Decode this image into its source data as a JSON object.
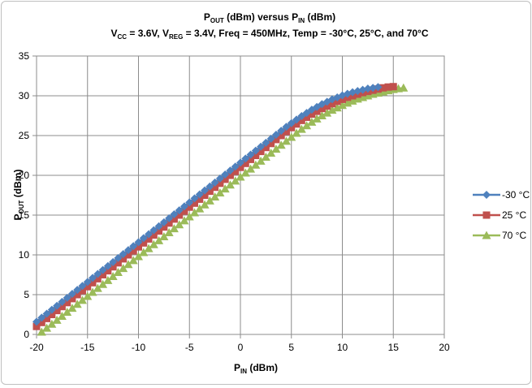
{
  "chart_data": {
    "type": "line",
    "title_line1": {
      "a": "P",
      "a_sub": "OUT",
      "b": " (dBm) versus P",
      "b_sub": "IN",
      "c": " (dBm)"
    },
    "title_line2": {
      "a": "V",
      "a_sub": "CC",
      "b": " = 3.6V, V",
      "b_sub": "REG",
      "c": " = 3.4V, Freq = 450MHz, Temp = -30°C, 25°C, and 70°C"
    },
    "xlabel": {
      "main": "P",
      "sub": "IN",
      "rest": " (dBm)"
    },
    "ylabel": {
      "main": "P",
      "sub": "OUT",
      "rest": " (dBm)"
    },
    "xlim": [
      -20,
      20
    ],
    "ylim": [
      0,
      35
    ],
    "x_ticks": [
      -20,
      -15,
      -10,
      -5,
      0,
      5,
      10,
      15,
      20
    ],
    "y_ticks": [
      0,
      5,
      10,
      15,
      20,
      25,
      30,
      35
    ],
    "grid": true,
    "legend_position": "right",
    "series": [
      {
        "name": "-30 °C",
        "color": "#4f81bd",
        "marker": "diamond",
        "points": [
          [
            -20,
            1.6
          ],
          [
            -19.5,
            2.1
          ],
          [
            -19,
            2.6
          ],
          [
            -18.5,
            3.1
          ],
          [
            -18,
            3.6
          ],
          [
            -17.5,
            4.1
          ],
          [
            -17,
            4.6
          ],
          [
            -16.5,
            5.1
          ],
          [
            -16,
            5.6
          ],
          [
            -15.5,
            6.1
          ],
          [
            -15,
            6.6
          ],
          [
            -14.5,
            7.1
          ],
          [
            -14,
            7.6
          ],
          [
            -13.5,
            8.1
          ],
          [
            -13,
            8.6
          ],
          [
            -12.5,
            9.1
          ],
          [
            -12,
            9.6
          ],
          [
            -11.5,
            10.1
          ],
          [
            -11,
            10.6
          ],
          [
            -10.5,
            11.1
          ],
          [
            -10,
            11.6
          ],
          [
            -9.5,
            12.1
          ],
          [
            -9,
            12.6
          ],
          [
            -8.5,
            13.1
          ],
          [
            -8,
            13.6
          ],
          [
            -7.5,
            14.1
          ],
          [
            -7,
            14.6
          ],
          [
            -6.5,
            15.1
          ],
          [
            -6,
            15.6
          ],
          [
            -5.5,
            16.1
          ],
          [
            -5,
            16.6
          ],
          [
            -4.5,
            17.1
          ],
          [
            -4,
            17.6
          ],
          [
            -3.5,
            18.1
          ],
          [
            -3,
            18.6
          ],
          [
            -2.5,
            19.1
          ],
          [
            -2,
            19.6
          ],
          [
            -1.5,
            20.1
          ],
          [
            -1,
            20.6
          ],
          [
            -0.5,
            21.1
          ],
          [
            0,
            21.6
          ],
          [
            0.5,
            22.1
          ],
          [
            1,
            22.6
          ],
          [
            1.5,
            23.1
          ],
          [
            2,
            23.6
          ],
          [
            2.5,
            24.1
          ],
          [
            3,
            24.6
          ],
          [
            3.5,
            25.1
          ],
          [
            4,
            25.6
          ],
          [
            4.5,
            26.1
          ],
          [
            5,
            26.55
          ],
          [
            5.5,
            27.0
          ],
          [
            6,
            27.45
          ],
          [
            6.5,
            27.85
          ],
          [
            7,
            28.25
          ],
          [
            7.5,
            28.6
          ],
          [
            8,
            28.95
          ],
          [
            8.5,
            29.25
          ],
          [
            9,
            29.55
          ],
          [
            9.5,
            29.8
          ],
          [
            10,
            30.05
          ],
          [
            10.5,
            30.25
          ],
          [
            11,
            30.45
          ],
          [
            11.5,
            30.6
          ],
          [
            12,
            30.75
          ],
          [
            12.5,
            30.9
          ],
          [
            13,
            31.0
          ],
          [
            13.5,
            31.1
          ]
        ]
      },
      {
        "name": "25 °C",
        "color": "#c0504d",
        "marker": "square",
        "points": [
          [
            -20,
            1.0
          ],
          [
            -19.5,
            1.5
          ],
          [
            -19,
            2.0
          ],
          [
            -18.5,
            2.5
          ],
          [
            -18,
            3.0
          ],
          [
            -17.5,
            3.5
          ],
          [
            -17,
            4.0
          ],
          [
            -16.5,
            4.5
          ],
          [
            -16,
            5.0
          ],
          [
            -15.5,
            5.5
          ],
          [
            -15,
            6.0
          ],
          [
            -14.5,
            6.5
          ],
          [
            -14,
            7.0
          ],
          [
            -13.5,
            7.5
          ],
          [
            -13,
            8.0
          ],
          [
            -12.5,
            8.5
          ],
          [
            -12,
            9.0
          ],
          [
            -11.5,
            9.5
          ],
          [
            -11,
            10.0
          ],
          [
            -10.5,
            10.5
          ],
          [
            -10,
            11.0
          ],
          [
            -9.5,
            11.5
          ],
          [
            -9,
            12.0
          ],
          [
            -8.5,
            12.5
          ],
          [
            -8,
            13.0
          ],
          [
            -7.5,
            13.5
          ],
          [
            -7,
            14.0
          ],
          [
            -6.5,
            14.5
          ],
          [
            -6,
            15.0
          ],
          [
            -5.5,
            15.5
          ],
          [
            -5,
            16.0
          ],
          [
            -4.5,
            16.5
          ],
          [
            -4,
            17.0
          ],
          [
            -3.5,
            17.5
          ],
          [
            -3,
            18.0
          ],
          [
            -2.5,
            18.5
          ],
          [
            -2,
            19.0
          ],
          [
            -1.5,
            19.5
          ],
          [
            -1,
            20.0
          ],
          [
            -0.5,
            20.5
          ],
          [
            0,
            21.0
          ],
          [
            0.5,
            21.5
          ],
          [
            1,
            22.0
          ],
          [
            1.5,
            22.5
          ],
          [
            2,
            23.0
          ],
          [
            2.5,
            23.5
          ],
          [
            3,
            24.0
          ],
          [
            3.5,
            24.5
          ],
          [
            4,
            25.0
          ],
          [
            4.5,
            25.5
          ],
          [
            5,
            26.0
          ],
          [
            5.5,
            26.45
          ],
          [
            6,
            26.9
          ],
          [
            6.5,
            27.3
          ],
          [
            7,
            27.7
          ],
          [
            7.5,
            28.05
          ],
          [
            8,
            28.4
          ],
          [
            8.5,
            28.7
          ],
          [
            9,
            29.0
          ],
          [
            9.5,
            29.3
          ],
          [
            10,
            29.55
          ],
          [
            10.5,
            29.8
          ],
          [
            11,
            30.0
          ],
          [
            11.5,
            30.2
          ],
          [
            12,
            30.4
          ],
          [
            12.5,
            30.55
          ],
          [
            13,
            30.7
          ],
          [
            13.5,
            30.85
          ],
          [
            14,
            31.0
          ],
          [
            14.5,
            31.1
          ],
          [
            15,
            31.15
          ]
        ]
      },
      {
        "name": "70 °C",
        "color": "#9bbb59",
        "marker": "triangle",
        "points": [
          [
            -19.5,
            0.3
          ],
          [
            -19,
            0.8
          ],
          [
            -18.5,
            1.3
          ],
          [
            -18,
            1.8
          ],
          [
            -17.5,
            2.3
          ],
          [
            -17,
            2.8
          ],
          [
            -16.5,
            3.3
          ],
          [
            -16,
            3.8
          ],
          [
            -15.5,
            4.3
          ],
          [
            -15,
            4.8
          ],
          [
            -14.5,
            5.3
          ],
          [
            -14,
            5.8
          ],
          [
            -13.5,
            6.3
          ],
          [
            -13,
            6.8
          ],
          [
            -12.5,
            7.3
          ],
          [
            -12,
            7.8
          ],
          [
            -11.5,
            8.3
          ],
          [
            -11,
            8.8
          ],
          [
            -10.5,
            9.3
          ],
          [
            -10,
            9.8
          ],
          [
            -9.5,
            10.3
          ],
          [
            -9,
            10.8
          ],
          [
            -8.5,
            11.3
          ],
          [
            -8,
            11.8
          ],
          [
            -7.5,
            12.3
          ],
          [
            -7,
            12.8
          ],
          [
            -6.5,
            13.3
          ],
          [
            -6,
            13.8
          ],
          [
            -5.5,
            14.3
          ],
          [
            -5,
            14.8
          ],
          [
            -4.5,
            15.3
          ],
          [
            -4,
            15.8
          ],
          [
            -3.5,
            16.3
          ],
          [
            -3,
            16.8
          ],
          [
            -2.5,
            17.3
          ],
          [
            -2,
            17.8
          ],
          [
            -1.5,
            18.3
          ],
          [
            -1,
            18.8
          ],
          [
            -0.5,
            19.3
          ],
          [
            0,
            19.8
          ],
          [
            0.5,
            20.3
          ],
          [
            1,
            20.8
          ],
          [
            1.5,
            21.3
          ],
          [
            2,
            21.8
          ],
          [
            2.5,
            22.3
          ],
          [
            3,
            22.8
          ],
          [
            3.5,
            23.3
          ],
          [
            4,
            23.8
          ],
          [
            4.5,
            24.3
          ],
          [
            5,
            24.8
          ],
          [
            5.5,
            25.3
          ],
          [
            6,
            25.8
          ],
          [
            6.5,
            26.25
          ],
          [
            7,
            26.7
          ],
          [
            7.5,
            27.1
          ],
          [
            8,
            27.5
          ],
          [
            8.5,
            27.85
          ],
          [
            9,
            28.2
          ],
          [
            9.5,
            28.5
          ],
          [
            10,
            28.8
          ],
          [
            10.5,
            29.1
          ],
          [
            11,
            29.35
          ],
          [
            11.5,
            29.6
          ],
          [
            12,
            29.8
          ],
          [
            12.5,
            30.0
          ],
          [
            13,
            30.2
          ],
          [
            13.5,
            30.35
          ],
          [
            14,
            30.5
          ],
          [
            14.5,
            30.65
          ],
          [
            15,
            30.8
          ],
          [
            15.5,
            30.9
          ],
          [
            16,
            31.0
          ]
        ]
      }
    ]
  }
}
